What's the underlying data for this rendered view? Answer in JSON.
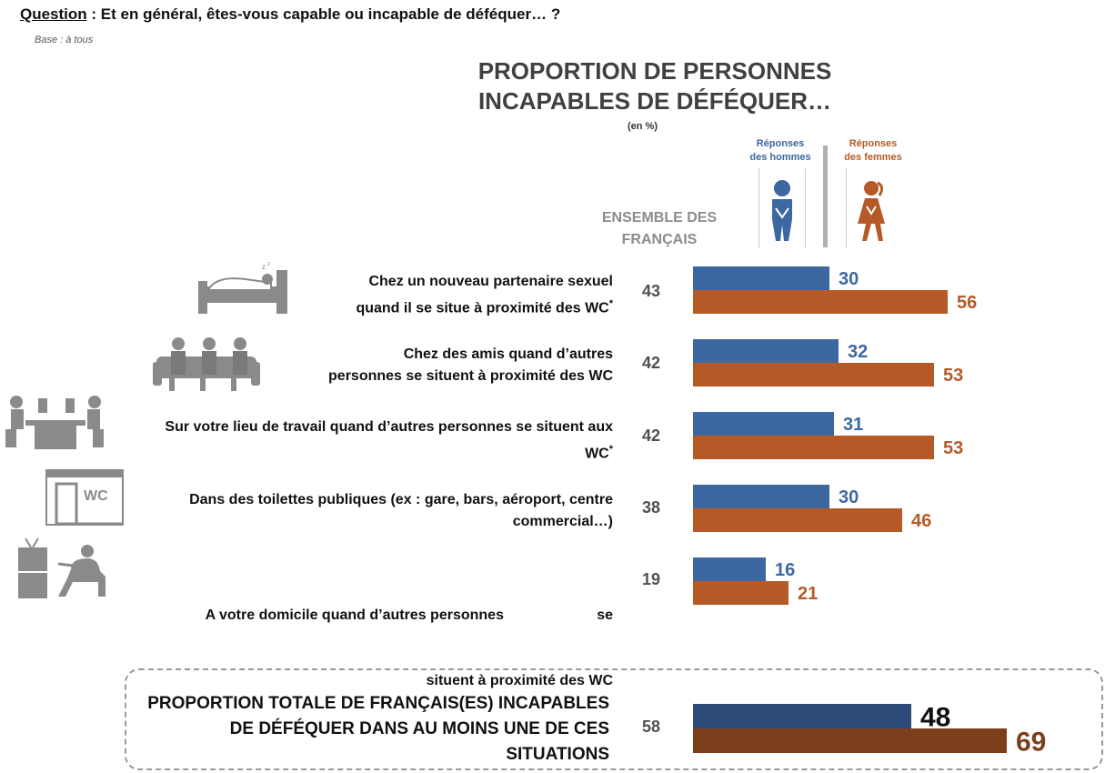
{
  "question": {
    "label": "Question",
    "text": " : Et en général, êtes-vous capable ou incapable de déféquer… ?",
    "base": "Base : à tous"
  },
  "header": {
    "title_line1": "PROPORTION DE PERSONNES",
    "title_line2": "INCAPABLES DE DÉFÉQUER…",
    "unit": "(en %)",
    "overall_line1": "ENSEMBLE DES",
    "overall_line2": "FRANÇAIS"
  },
  "legend": {
    "men_line1": "Réponses",
    "men_line2": "des hommes",
    "women_line1": "Réponses",
    "women_line2": "des femmes"
  },
  "colors": {
    "men": "#3d67a0",
    "women": "#b55a27",
    "men_total": "#2e4a78",
    "women_total": "#7d3f1b",
    "icon": "#7f7f7f"
  },
  "rows": [
    {
      "line1": "Chez un nouveau partenaire sexuel",
      "line2": "quand il se situe à proximité des WC",
      "note": "*",
      "icon": "bed-icon"
    },
    {
      "line1": "Chez des amis quand d’autres",
      "line2": "personnes se situent à proximité des WC",
      "note": "",
      "icon": "friends-sofa-icon"
    },
    {
      "line1": "Sur votre lieu de travail quand d’autres personnes se situent aux",
      "line2": "WC",
      "note": "*",
      "icon": "office-desk-icon"
    },
    {
      "line1": "Dans des toilettes publiques (ex : gare, bars, aéroport, centre",
      "line2": "commercial…)",
      "note": "",
      "icon": "public-wc-icon"
    },
    {
      "line1": "A votre domicile quand d’autres personnes                       se",
      "line2": "situent à proximité des WC",
      "note": "",
      "icon": "home-tv-icon"
    }
  ],
  "total": {
    "line1": "PROPORTION TOTALE DE FRANÇAIS(ES) INCAPABLES",
    "line2": "DE DÉFÉQUER DANS AU MOINS UNE DE CES",
    "line3": "SITUATIONS"
  },
  "chart_data": {
    "type": "bar",
    "orientation": "horizontal",
    "unit": "%",
    "categories": [
      "Chez un nouveau partenaire sexuel quand il se situe à proximité des WC *",
      "Chez des amis quand d’autres personnes se situent à proximité des WC",
      "Sur votre lieu de travail quand d’autres personnes se situent aux WC *",
      "Dans des toilettes publiques (ex : gare, bars, aéroport, centre commercial…)",
      "A votre domicile quand d’autres personnes se situent à proximité des WC",
      "PROPORTION TOTALE DE FRANÇAIS(ES) INCAPABLES DE DÉFÉQUER DANS AU MOINS UNE DE CES SITUATIONS"
    ],
    "overall": [
      43,
      42,
      42,
      38,
      19,
      58
    ],
    "series": [
      {
        "name": "Réponses des hommes",
        "values": [
          30,
          32,
          31,
          30,
          16,
          48
        ]
      },
      {
        "name": "Réponses des femmes",
        "values": [
          56,
          53,
          53,
          46,
          21,
          69
        ]
      }
    ],
    "title": "PROPORTION DE PERSONNES INCAPABLES DE DÉFÉQUER…",
    "xlim": [
      0,
      100
    ],
    "grid": false,
    "legend_position": "top-right"
  }
}
